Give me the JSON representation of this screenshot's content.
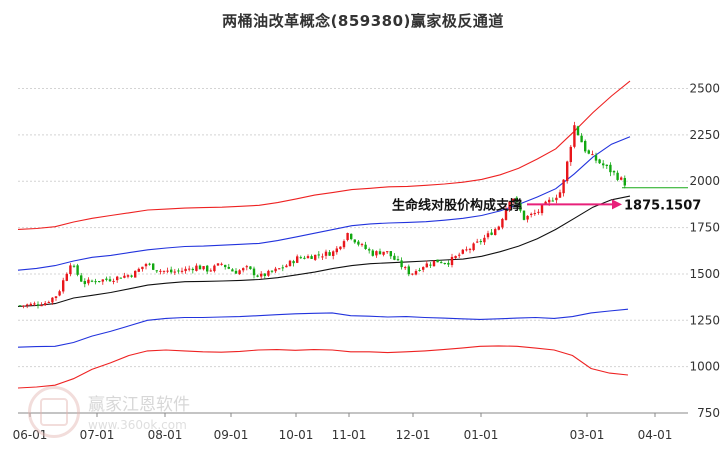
{
  "chart_data": {
    "type": "candlestick",
    "title": "两桶油改革概念(859380)赢家极反通道",
    "x_tick_labels": [
      "06-01",
      "07-01",
      "08-01",
      "09-01",
      "10-01",
      "11-01",
      "12-01",
      "01-01",
      "03-01",
      "04-01"
    ],
    "y_tick_labels": [
      "2500",
      "2250",
      "2000",
      "1750",
      "1500",
      "1250",
      "1000",
      "750"
    ],
    "ylim": [
      750,
      2600
    ],
    "grid": "horizontal-dashed",
    "annotation": {
      "label": "生命线对股价构成支撑",
      "value_label": "1875.1507",
      "value": 1875.1507
    },
    "support_line_value": 1965,
    "series": [
      {
        "role": "upper-outer",
        "color": "#ee2222",
        "values": [
          885,
          890,
          900,
          935,
          985,
          1020,
          1060,
          1085,
          1090,
          1085,
          1080,
          1078,
          1082,
          1090,
          1092,
          1088,
          1092,
          1090,
          1080,
          1080,
          1076,
          1080,
          1085,
          1092,
          1100,
          1110,
          1112,
          1110,
          1100,
          1090,
          1060,
          990,
          965,
          955
        ]
      },
      {
        "role": "upper-inner",
        "color": "#2233dd",
        "values": [
          1105,
          1108,
          1110,
          1130,
          1165,
          1190,
          1220,
          1250,
          1260,
          1265,
          1265,
          1268,
          1270,
          1275,
          1280,
          1285,
          1288,
          1290,
          1275,
          1272,
          1268,
          1270,
          1265,
          1262,
          1258,
          1255,
          1258,
          1262,
          1265,
          1260,
          1270,
          1290,
          1300,
          1310
        ]
      },
      {
        "role": "lifeline",
        "color": "#111111",
        "values": [
          1325,
          1330,
          1340,
          1370,
          1385,
          1400,
          1420,
          1440,
          1450,
          1458,
          1460,
          1462,
          1465,
          1470,
          1480,
          1495,
          1510,
          1530,
          1545,
          1555,
          1560,
          1565,
          1570,
          1575,
          1580,
          1595,
          1620,
          1650,
          1690,
          1740,
          1800,
          1860,
          1900,
          1920
        ]
      },
      {
        "role": "lower-inner",
        "color": "#2233dd",
        "values": [
          1520,
          1530,
          1545,
          1570,
          1590,
          1600,
          1615,
          1630,
          1640,
          1648,
          1650,
          1655,
          1660,
          1665,
          1680,
          1700,
          1720,
          1740,
          1760,
          1770,
          1775,
          1778,
          1782,
          1790,
          1800,
          1815,
          1840,
          1875,
          1915,
          1960,
          2040,
          2130,
          2200,
          2240
        ]
      },
      {
        "role": "lower-outer",
        "color": "#ee2222",
        "values": [
          1740,
          1745,
          1755,
          1780,
          1800,
          1815,
          1830,
          1845,
          1850,
          1855,
          1858,
          1860,
          1865,
          1870,
          1885,
          1905,
          1925,
          1940,
          1955,
          1962,
          1970,
          1972,
          1978,
          1985,
          1995,
          2010,
          2035,
          2070,
          2120,
          2175,
          2270,
          2370,
          2460,
          2540
        ]
      }
    ],
    "close_path": [
      1330,
      1335,
      1345,
      1390,
      1560,
      1450,
      1465,
      1470,
      1485,
      1500,
      1555,
      1520,
      1510,
      1520,
      1540,
      1520,
      1555,
      1510,
      1530,
      1485,
      1510,
      1540,
      1585,
      1595,
      1605,
      1620,
      1720,
      1655,
      1610,
      1625,
      1560,
      1500,
      1545,
      1570,
      1565,
      1610,
      1650,
      1700,
      1760,
      1930,
      1800,
      1830,
      1890,
      1950,
      2300,
      2150,
      2100,
      2050,
      1990
    ]
  }
}
